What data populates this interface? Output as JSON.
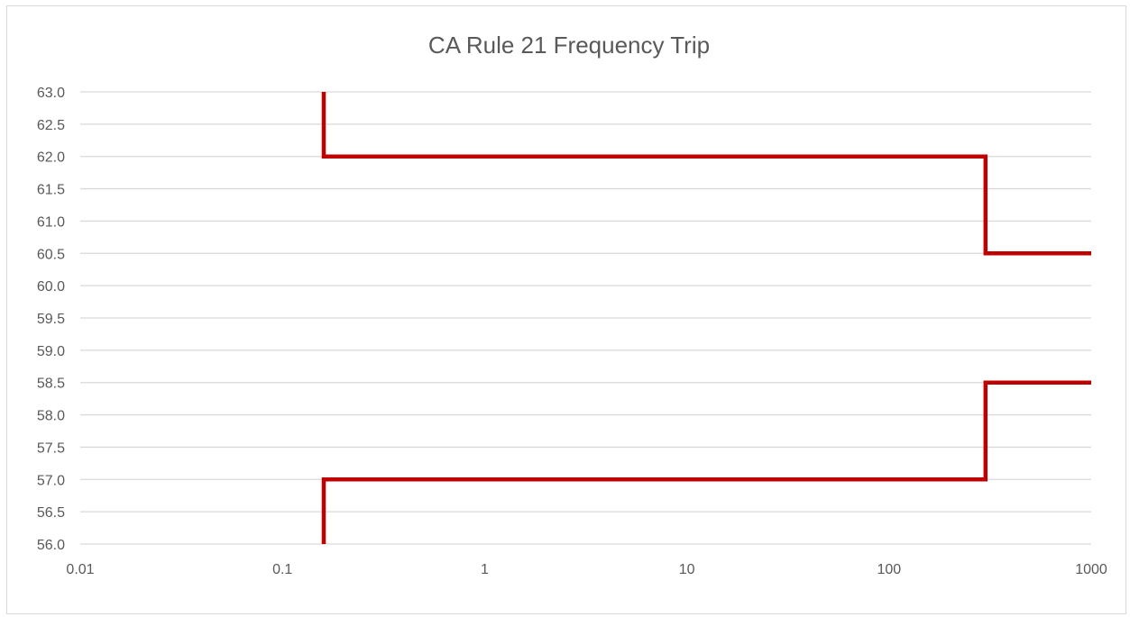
{
  "chart_data": {
    "type": "line",
    "title": "CA Rule 21 Frequency Trip",
    "xlabel": "",
    "ylabel": "",
    "x_scale": "log",
    "xlim": [
      0.01,
      1000
    ],
    "ylim": [
      56.0,
      63.0
    ],
    "x_ticks": [
      "0.01",
      "0.1",
      "1",
      "10",
      "100",
      "1000"
    ],
    "y_ticks": [
      "63.0",
      "62.5",
      "62.0",
      "61.5",
      "61.0",
      "60.5",
      "60.0",
      "59.5",
      "59.0",
      "58.5",
      "58.0",
      "57.5",
      "57.0",
      "56.5",
      "56.0"
    ],
    "grid": true,
    "legend": "none",
    "line_color": "#c00000",
    "series": [
      {
        "points": [
          [
            0.16,
            63.0
          ],
          [
            0.16,
            62.0
          ],
          [
            300,
            62.0
          ],
          [
            300,
            60.5
          ],
          [
            1000,
            60.5
          ]
        ]
      },
      {
        "points": [
          [
            0.16,
            56.0
          ],
          [
            0.16,
            57.0
          ],
          [
            300,
            57.0
          ],
          [
            300,
            58.5
          ],
          [
            1000,
            58.5
          ]
        ]
      }
    ]
  }
}
